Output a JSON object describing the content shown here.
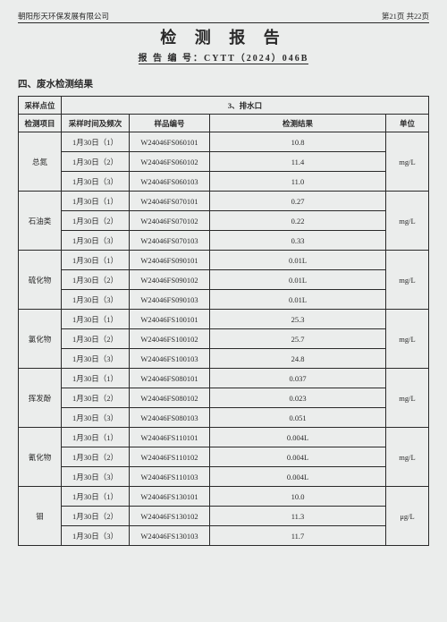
{
  "header": {
    "company": "朝阳彤天环保发展有限公司",
    "page_info": "第21页  共22页"
  },
  "title": "检 测 报 告",
  "report_no_label": "报 告 编 号：",
  "report_no": "CYTT（2024）046B",
  "section": "四、废水检测结果",
  "table": {
    "row1_label": "采样点位",
    "row1_value": "3、排水口",
    "headers": {
      "item": "检测项目",
      "time": "采样时间及频次",
      "sample": "样品编号",
      "result": "检测结果",
      "unit": "单位"
    },
    "groups": [
      {
        "item": "总氮",
        "unit": "mg/L",
        "rows": [
          {
            "time": "1月30日（1）",
            "sample": "W24046FS060101",
            "result": "10.8"
          },
          {
            "time": "1月30日（2）",
            "sample": "W24046FS060102",
            "result": "11.4"
          },
          {
            "time": "1月30日（3）",
            "sample": "W24046FS060103",
            "result": "11.0"
          }
        ]
      },
      {
        "item": "石油类",
        "unit": "mg/L",
        "rows": [
          {
            "time": "1月30日（1）",
            "sample": "W24046FS070101",
            "result": "0.27"
          },
          {
            "time": "1月30日（2）",
            "sample": "W24046FS070102",
            "result": "0.22"
          },
          {
            "time": "1月30日（3）",
            "sample": "W24046FS070103",
            "result": "0.33"
          }
        ]
      },
      {
        "item": "硫化物",
        "unit": "mg/L",
        "rows": [
          {
            "time": "1月30日（1）",
            "sample": "W24046FS090101",
            "result": "0.01L"
          },
          {
            "time": "1月30日（2）",
            "sample": "W24046FS090102",
            "result": "0.01L"
          },
          {
            "time": "1月30日（3）",
            "sample": "W24046FS090103",
            "result": "0.01L"
          }
        ]
      },
      {
        "item": "氯化物",
        "unit": "mg/L",
        "rows": [
          {
            "time": "1月30日（1）",
            "sample": "W24046FS100101",
            "result": "25.3"
          },
          {
            "time": "1月30日（2）",
            "sample": "W24046FS100102",
            "result": "25.7"
          },
          {
            "time": "1月30日（3）",
            "sample": "W24046FS100103",
            "result": "24.8"
          }
        ]
      },
      {
        "item": "挥发酚",
        "unit": "mg/L",
        "rows": [
          {
            "time": "1月30日（1）",
            "sample": "W24046FS080101",
            "result": "0.037"
          },
          {
            "time": "1月30日（2）",
            "sample": "W24046FS080102",
            "result": "0.023"
          },
          {
            "time": "1月30日（3）",
            "sample": "W24046FS080103",
            "result": "0.051"
          }
        ]
      },
      {
        "item": "氰化物",
        "unit": "mg/L",
        "rows": [
          {
            "time": "1月30日（1）",
            "sample": "W24046FS110101",
            "result": "0.004L"
          },
          {
            "time": "1月30日（2）",
            "sample": "W24046FS110102",
            "result": "0.004L"
          },
          {
            "time": "1月30日（3）",
            "sample": "W24046FS110103",
            "result": "0.004L"
          }
        ]
      },
      {
        "item": "钼",
        "unit": "μg/L",
        "rows": [
          {
            "time": "1月30日（1）",
            "sample": "W24046FS130101",
            "result": "10.0"
          },
          {
            "time": "1月30日（2）",
            "sample": "W24046FS130102",
            "result": "11.3"
          },
          {
            "time": "1月30日（3）",
            "sample": "W24046FS130103",
            "result": "11.7"
          }
        ]
      }
    ]
  }
}
